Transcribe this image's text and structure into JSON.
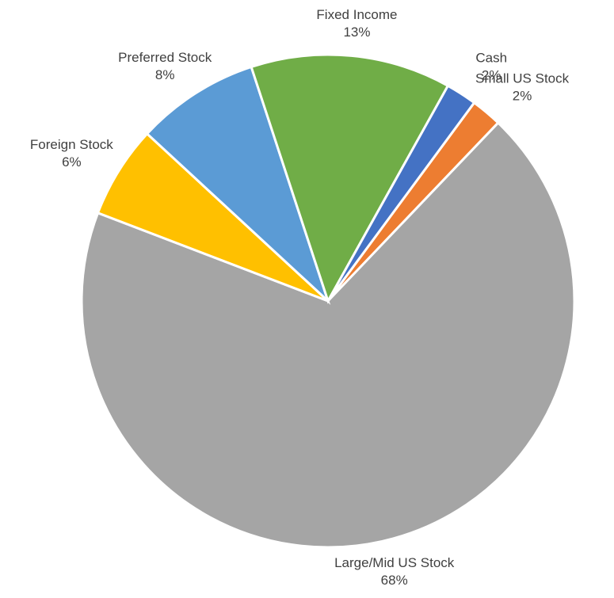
{
  "chart_data": {
    "type": "pie",
    "categories": [
      "Small US Stock",
      "Large/Mid US Stock",
      "Foreign Stock",
      "Preferred Stock",
      "Fixed Income",
      "Cash"
    ],
    "values": [
      2,
      68,
      6,
      8,
      13,
      2
    ],
    "value_labels": [
      "2%",
      "68%",
      "6%",
      "8%",
      "13%",
      "2%"
    ],
    "colors": [
      "#ed7d31",
      "#a5a5a5",
      "#ffc000",
      "#5b9bd5",
      "#70ad47",
      "#4472c4"
    ]
  }
}
